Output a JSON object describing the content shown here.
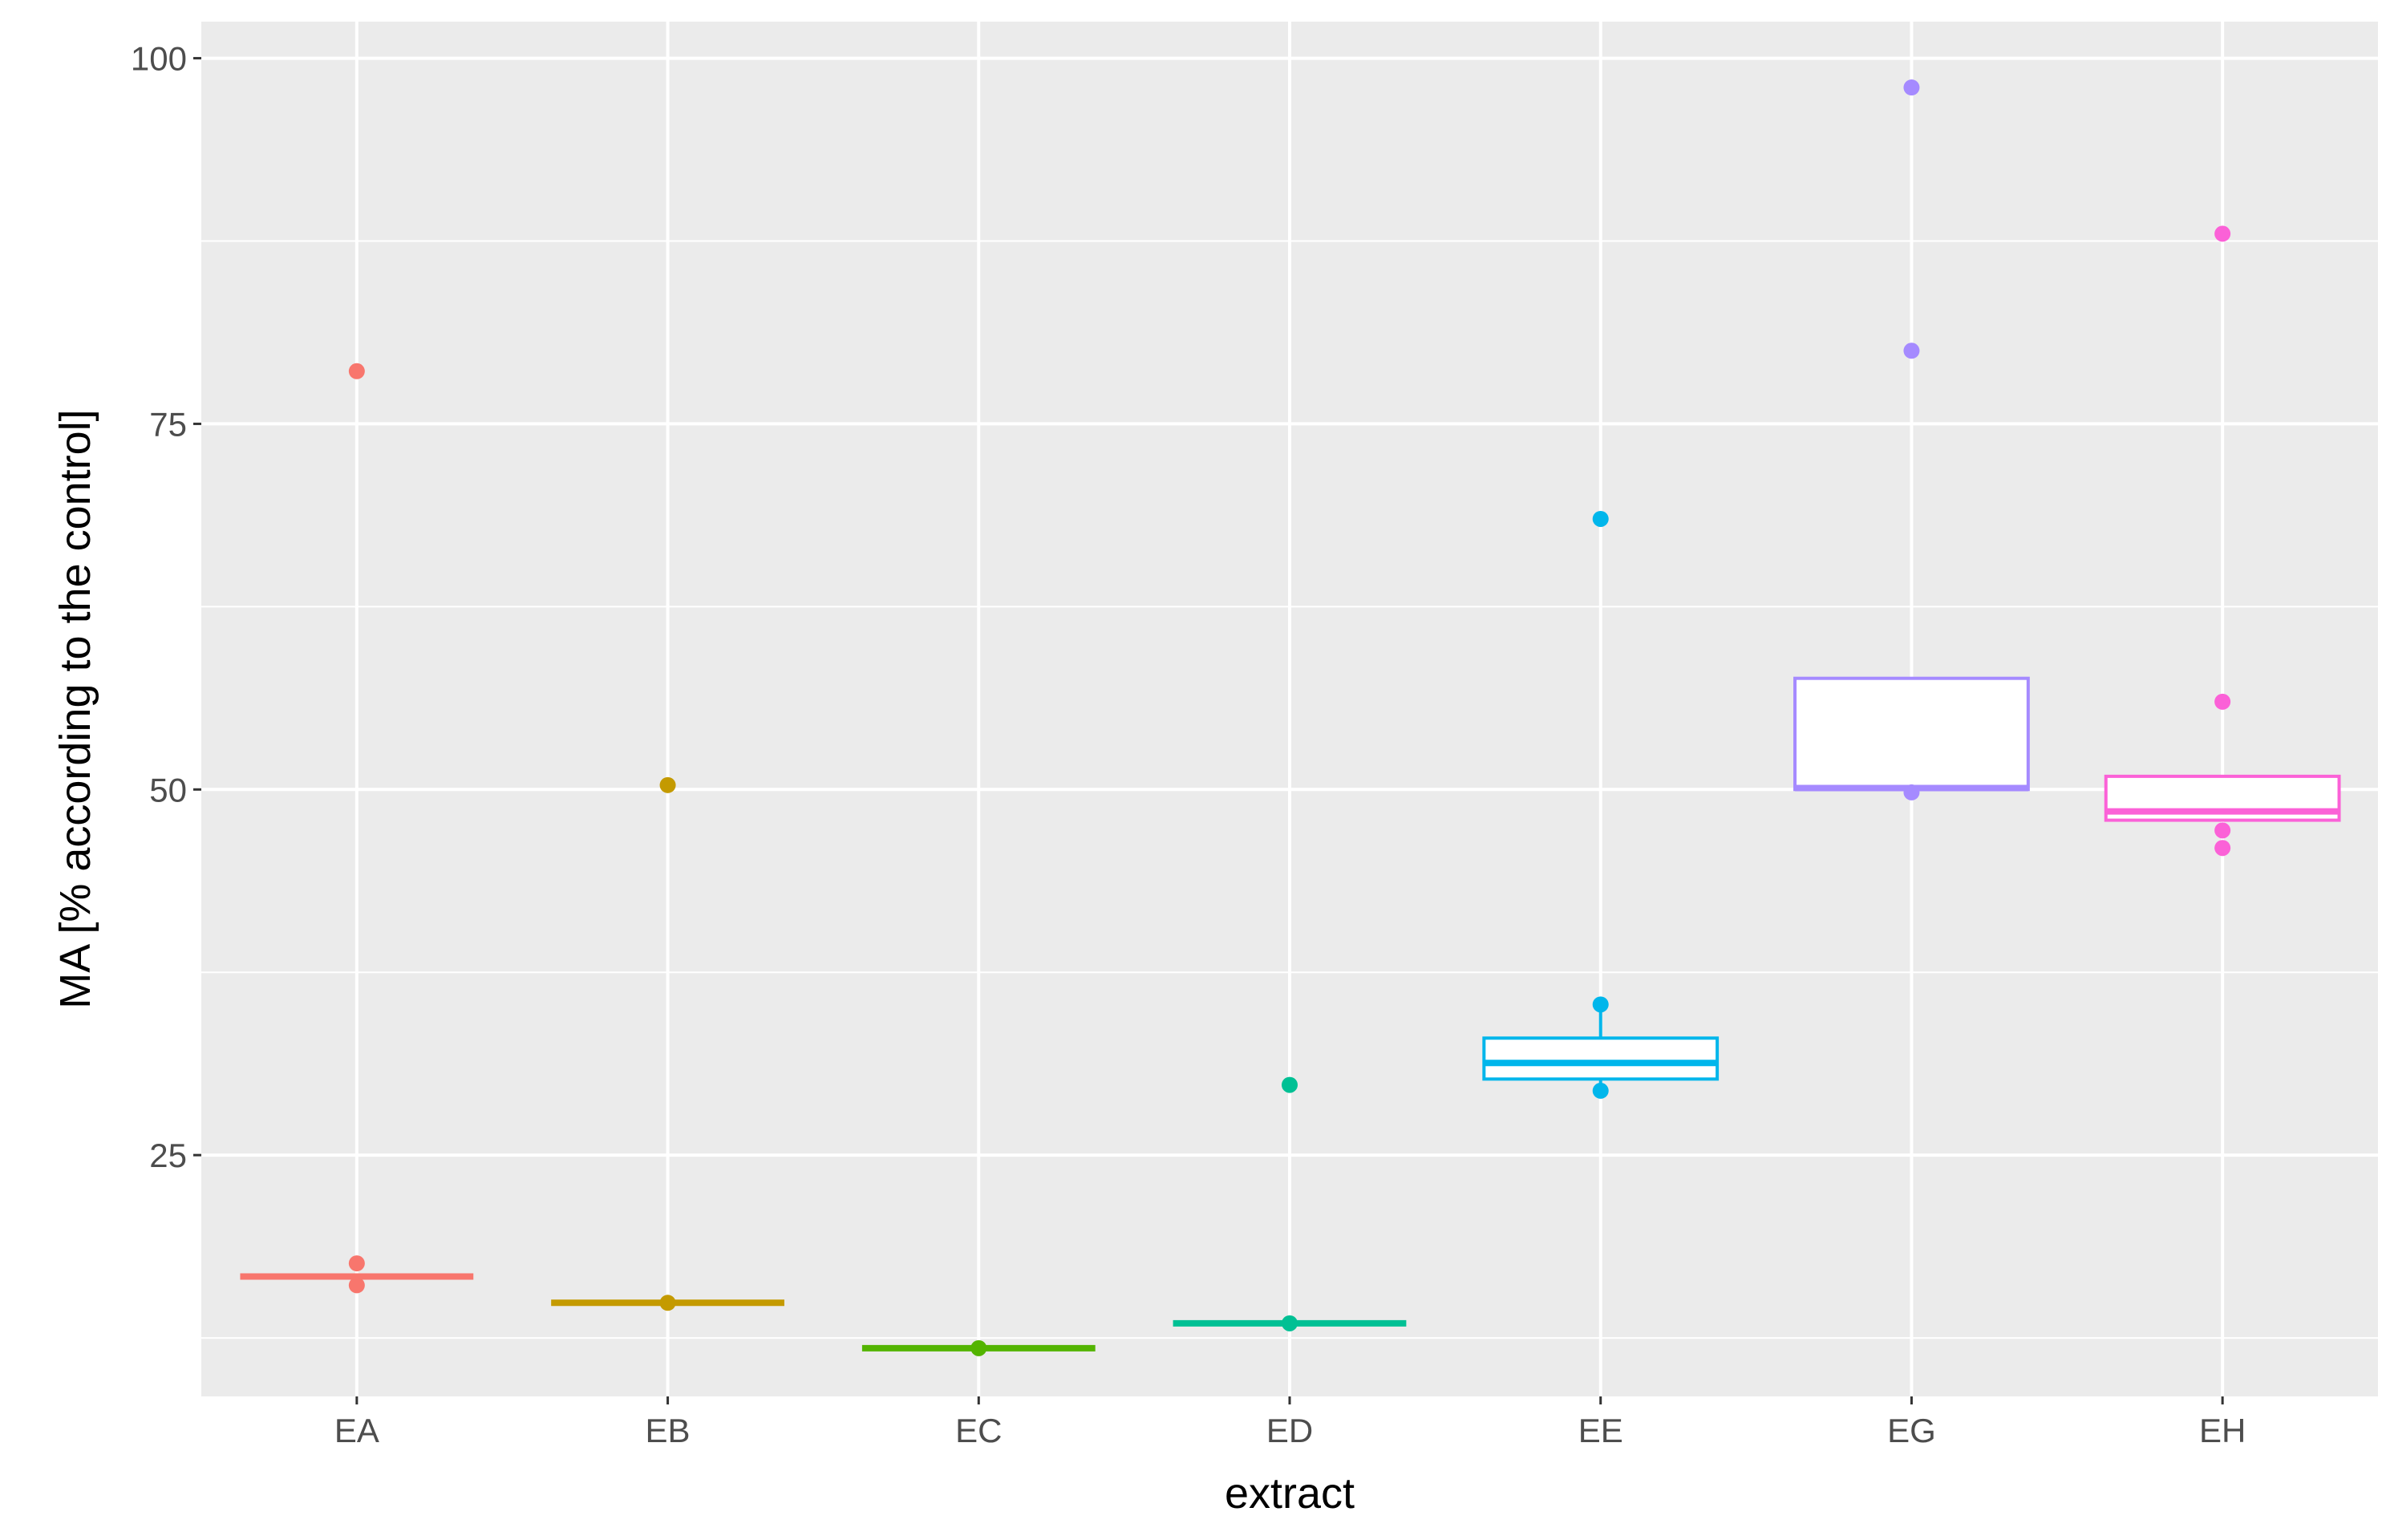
{
  "chart_data": {
    "type": "boxplot",
    "xlabel": "extract",
    "ylabel": "MA [% according to the control]",
    "ylim": [
      8.5,
      102.5
    ],
    "yticks": [
      25,
      50,
      75,
      100
    ],
    "ytick_labels": [
      "25",
      "50",
      "75",
      "100"
    ],
    "y_minor_gridlines": [
      12.5,
      37.5,
      62.5,
      87.5
    ],
    "grid": true,
    "legend": "none",
    "background": "#ebebeb",
    "gridline_color": "#ffffff",
    "categories": [
      "EA",
      "EB",
      "EC",
      "ED",
      "EE",
      "EG",
      "EH"
    ],
    "series": [
      {
        "category": "EA",
        "color": "#F8766D",
        "whisker_low": 16.7,
        "q1": 16.7,
        "median": 16.7,
        "q3": 16.7,
        "whisker_high": 16.7,
        "points": [
          78.6,
          17.6,
          16.1
        ]
      },
      {
        "category": "EB",
        "color": "#C49A00",
        "whisker_low": 14.9,
        "q1": 14.9,
        "median": 14.9,
        "q3": 14.9,
        "whisker_high": 14.9,
        "points": [
          50.3,
          14.9
        ]
      },
      {
        "category": "EC",
        "color": "#53B400",
        "whisker_low": 11.8,
        "q1": 11.8,
        "median": 11.8,
        "q3": 11.8,
        "whisker_high": 11.8,
        "points": [
          11.8
        ]
      },
      {
        "category": "ED",
        "color": "#00C094",
        "whisker_low": 13.5,
        "q1": 13.5,
        "median": 13.5,
        "q3": 13.5,
        "whisker_high": 13.5,
        "points": [
          29.8,
          13.5
        ]
      },
      {
        "category": "EE",
        "color": "#00B6EB",
        "whisker_low": 29.4,
        "q1": 30.2,
        "median": 31.3,
        "q3": 33.0,
        "whisker_high": 35.3,
        "points": [
          68.5,
          35.3,
          29.4
        ]
      },
      {
        "category": "EG",
        "color": "#A58AFF",
        "whisker_low": 49.8,
        "q1": 50.0,
        "median": 50.1,
        "q3": 57.6,
        "whisker_high": 57.6,
        "points": [
          98.0,
          80.0,
          49.8
        ]
      },
      {
        "category": "EH",
        "color": "#FB61D7",
        "whisker_low": 47.9,
        "q1": 47.9,
        "median": 48.5,
        "q3": 50.9,
        "whisker_high": 50.9,
        "points": [
          88.0,
          56.0,
          47.2,
          46.0
        ]
      }
    ]
  }
}
